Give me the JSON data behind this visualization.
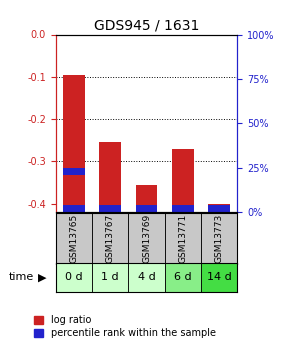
{
  "title": "GDS945 / 1631",
  "samples": [
    "GSM13765",
    "GSM13767",
    "GSM13769",
    "GSM13771",
    "GSM13773"
  ],
  "time_labels": [
    "0 d",
    "1 d",
    "4 d",
    "6 d",
    "14 d"
  ],
  "log_ratio": [
    -0.095,
    -0.255,
    -0.355,
    -0.27,
    -0.4
  ],
  "percentile": [
    25,
    2,
    3,
    2,
    1
  ],
  "bar_width": 0.6,
  "ylim": [
    -0.42,
    0.0
  ],
  "yticks": [
    0.0,
    -0.1,
    -0.2,
    -0.3,
    -0.4
  ],
  "log_ratio_color": "#cc2222",
  "percentile_color": "#2222cc",
  "title_fontsize": 10,
  "tick_fontsize": 7,
  "sample_fontsize": 6.5,
  "time_fontsize": 8,
  "legend_fontsize": 7,
  "gray_bg": "#c8c8c8",
  "time_colors": [
    "#ccffcc",
    "#ccffcc",
    "#ccffcc",
    "#88ee88",
    "#44dd44"
  ],
  "bar_bottom": -0.42,
  "pct_bar_height": 0.018
}
